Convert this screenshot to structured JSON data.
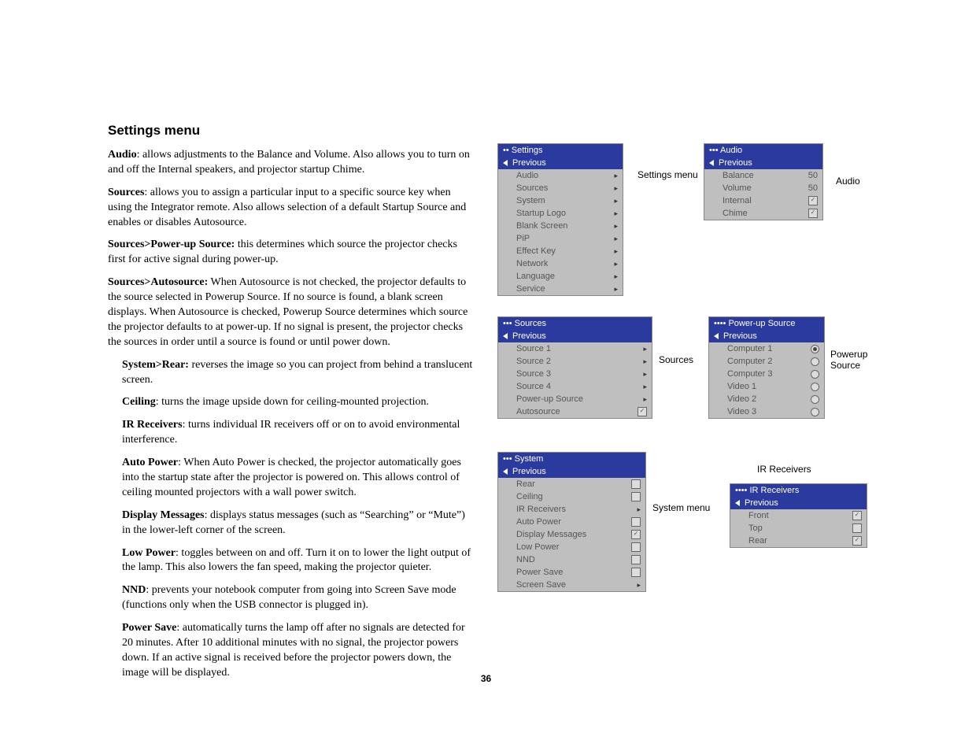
{
  "heading": "Settings menu",
  "pageNumber": "36",
  "paragraphs": {
    "p1b": "Audio",
    "p1": ": allows adjustments to the Balance and Volume. Also allows you to turn on and off the Internal speakers, and projector startup Chime.",
    "p2b": "Sources",
    "p2": ": allows you to assign a particular input to a specific source key when using the Integrator remote. Also allows selection of a default Startup Source and enables or disables Autosource.",
    "p3b": "Sources>Power-up Source:",
    "p3": " this determines which source the projector checks first for active signal during power-up.",
    "p4b": "Sources>Autosource:",
    "p4": " When Autosource is not checked, the projector defaults to the source selected in Powerup Source. If no source is found, a blank screen displays. When Autosource is checked, Powerup Source determines which source the projector defaults to at power-up. If no signal is present, the projector checks the sources in order until a source is found or until power down.",
    "p5b": "System>Rear:",
    "p5": " reverses the image so you can project from behind a translucent screen.",
    "p6b": "Ceiling",
    "p6": ": turns the image upside down for ceiling-mounted projection.",
    "p7b": "IR Receivers",
    "p7": ": turns individual IR receivers off or on to avoid environmental interference.",
    "p8b": "Auto Power",
    "p8": ": When Auto Power is checked, the projector automatically goes into the startup state after the projector is powered on. This allows control of ceiling mounted projectors with a wall power switch.",
    "p9b": "Display Messages",
    "p9": ": displays status messages (such as “Searching” or “Mute”) in the lower-left corner of the screen.",
    "p10b": "Low Power",
    "p10": ": toggles between on and off. Turn it on to lower the light output of the lamp. This also lowers the fan speed, making the projector quieter.",
    "p11b": "NND",
    "p11": ": prevents your notebook computer from going into Screen Save mode (functions only when the USB connector is plugged in).",
    "p12b": "Power Save",
    "p12": ": automatically turns the lamp off after no signals are detected for 20 minutes. After 10 additional minutes with no signal, the projector powers down. If an active signal is received before the projector powers down, the image will be displayed."
  },
  "labels": {
    "settings": "Settings menu",
    "audio": "Audio",
    "sources": "Sources",
    "powerup": "Powerup Source",
    "system": "System menu",
    "ir": "IR Receivers"
  },
  "menus": {
    "previous": "Previous",
    "settings": {
      "title": "••  Settings",
      "items": [
        "Audio",
        "Sources",
        "System",
        "Startup Logo",
        "Blank Screen",
        "PiP",
        "Effect Key",
        "Network",
        "Language",
        "Service"
      ]
    },
    "audio": {
      "title": "•••  Audio",
      "items": [
        {
          "label": "Balance",
          "val": "50"
        },
        {
          "label": "Volume",
          "val": "50"
        },
        {
          "label": "Internal",
          "cb": "✓"
        },
        {
          "label": "Chime",
          "cb": "✓"
        }
      ]
    },
    "sources": {
      "title": "•••  Sources",
      "items": [
        "Source 1",
        "Source 2",
        "Source 3",
        "Source 4",
        "Power-up Source"
      ],
      "auto": "Autosource"
    },
    "powerup": {
      "title": "••••  Power-up Source",
      "items": [
        {
          "label": "Computer 1",
          "on": true
        },
        {
          "label": "Computer 2",
          "on": false
        },
        {
          "label": "Computer 3",
          "on": false
        },
        {
          "label": "Video 1",
          "on": false
        },
        {
          "label": "Video 2",
          "on": false
        },
        {
          "label": "Video 3",
          "on": false
        }
      ]
    },
    "system": {
      "title": "•••  System",
      "items": [
        {
          "label": "Rear",
          "cb": ""
        },
        {
          "label": "Ceiling",
          "cb": ""
        },
        {
          "label": "IR Receivers",
          "arr": true
        },
        {
          "label": "Auto Power",
          "cb": ""
        },
        {
          "label": "Display Messages",
          "cb": "✓"
        },
        {
          "label": "Low Power",
          "cb": ""
        },
        {
          "label": "NND",
          "cb": ""
        },
        {
          "label": "Power Save",
          "cb": ""
        },
        {
          "label": "Screen Save",
          "arr": true
        }
      ]
    },
    "ir": {
      "title": "••••  IR Receivers",
      "items": [
        {
          "label": "Front",
          "cb": "✓"
        },
        {
          "label": "Top",
          "cb": ""
        },
        {
          "label": "Rear",
          "cb": "✓"
        }
      ]
    }
  },
  "colors": {
    "header": "#2b3a9e",
    "menuBg": "#bfbfbf"
  }
}
